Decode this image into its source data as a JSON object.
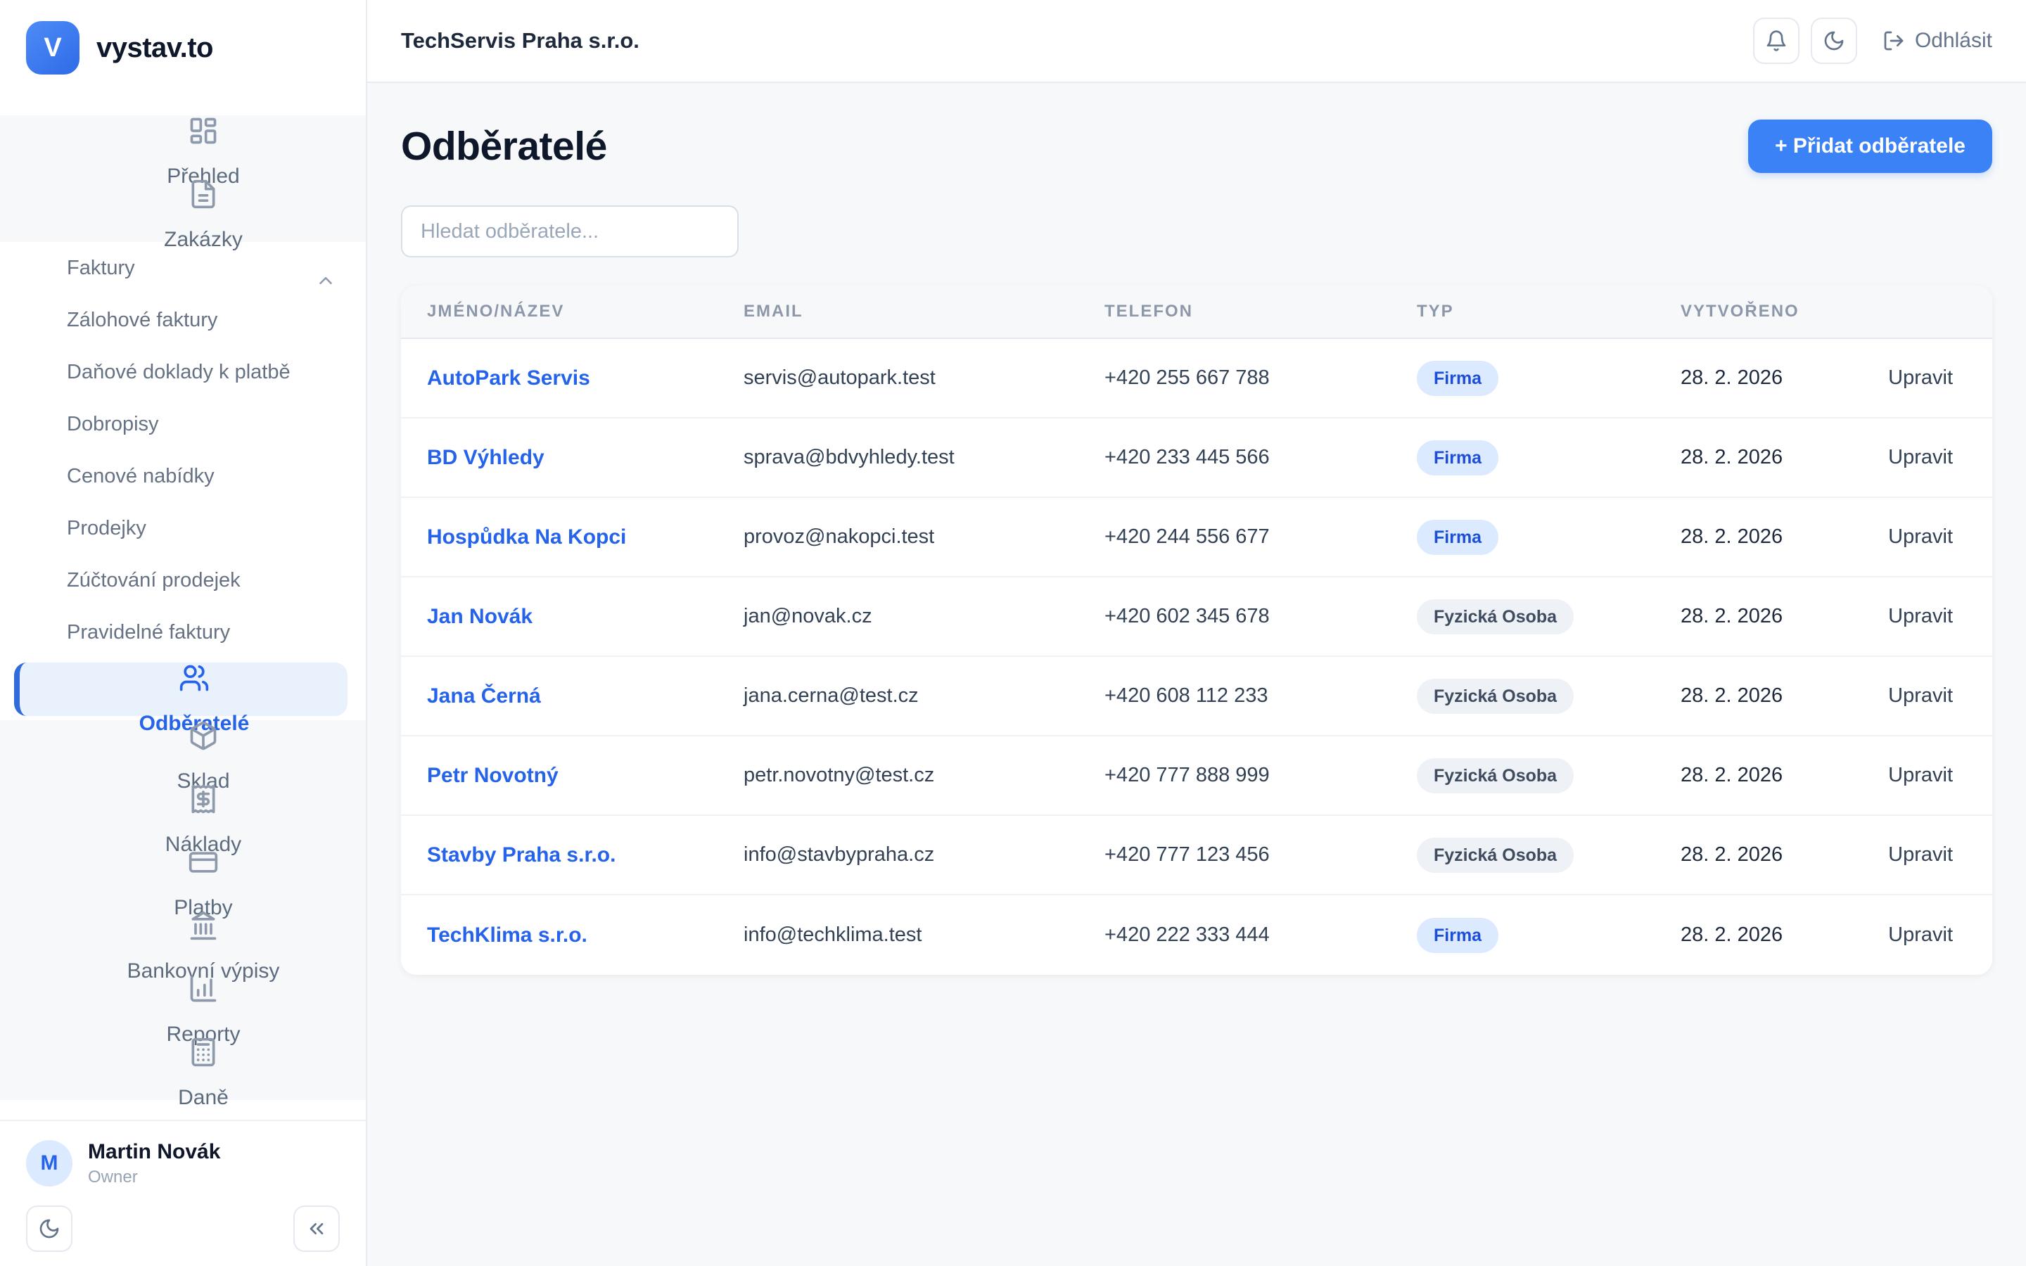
{
  "sidebar": {
    "logo_letter": "V",
    "brand": "vystav.to",
    "items": [
      {
        "label": "Přehled",
        "icon": "dashboard",
        "type": "main"
      },
      {
        "label": "Zakázky",
        "icon": "file-text",
        "type": "main",
        "chevron": "up"
      },
      {
        "label": "Faktury",
        "type": "sub"
      },
      {
        "label": "Zálohové faktury",
        "type": "sub"
      },
      {
        "label": "Daňové doklady k platbě",
        "type": "sub"
      },
      {
        "label": "Dobropisy",
        "type": "sub"
      },
      {
        "label": "Cenové nabídky",
        "type": "sub"
      },
      {
        "label": "Prodejky",
        "type": "sub"
      },
      {
        "label": "Zúčtování prodejek",
        "type": "sub"
      },
      {
        "label": "Pravidelné faktury",
        "type": "sub"
      },
      {
        "label": "Odběratelé",
        "icon": "users",
        "type": "main",
        "active": true
      },
      {
        "label": "Sklad",
        "icon": "package",
        "type": "main"
      },
      {
        "label": "Náklady",
        "icon": "receipt",
        "type": "main"
      },
      {
        "label": "Platby",
        "icon": "credit-card",
        "type": "main"
      },
      {
        "label": "Bankovní výpisy",
        "icon": "landmark",
        "type": "main"
      },
      {
        "label": "Reporty",
        "icon": "bar-chart",
        "type": "main"
      },
      {
        "label": "Daně",
        "icon": "calculator",
        "type": "main"
      }
    ],
    "user": {
      "initial": "M",
      "name": "Martin Novák",
      "role": "Owner"
    }
  },
  "header": {
    "company": "TechServis Praha s.r.o.",
    "logout_label": "Odhlásit"
  },
  "page": {
    "title": "Odběratelé",
    "add_button_label": "+ Přidat odběratele",
    "search_placeholder": "Hledat odběratele..."
  },
  "table": {
    "columns": [
      "JMÉNO/NÁZEV",
      "EMAIL",
      "TELEFON",
      "TYP",
      "VYTVOŘENO"
    ],
    "action_label": "Upravit",
    "rows": [
      {
        "name": "AutoPark Servis",
        "email": "servis@autopark.test",
        "phone": "+420 255 667 788",
        "type": "Firma",
        "type_variant": "blue",
        "created": "28. 2. 2026"
      },
      {
        "name": "BD Výhledy",
        "email": "sprava@bdvyhledy.test",
        "phone": "+420 233 445 566",
        "type": "Firma",
        "type_variant": "blue",
        "created": "28. 2. 2026"
      },
      {
        "name": "Hospůdka Na Kopci",
        "email": "provoz@nakopci.test",
        "phone": "+420 244 556 677",
        "type": "Firma",
        "type_variant": "blue",
        "created": "28. 2. 2026"
      },
      {
        "name": "Jan Novák",
        "email": "jan@novak.cz",
        "phone": "+420 602 345 678",
        "type": "Fyzická Osoba",
        "type_variant": "gray",
        "created": "28. 2. 2026"
      },
      {
        "name": "Jana Černá",
        "email": "jana.cerna@test.cz",
        "phone": "+420 608 112 233",
        "type": "Fyzická Osoba",
        "type_variant": "gray",
        "created": "28. 2. 2026"
      },
      {
        "name": "Petr Novotný",
        "email": "petr.novotny@test.cz",
        "phone": "+420 777 888 999",
        "type": "Fyzická Osoba",
        "type_variant": "gray",
        "created": "28. 2. 2026"
      },
      {
        "name": "Stavby Praha s.r.o.",
        "email": "info@stavbypraha.cz",
        "phone": "+420 777 123 456",
        "type": "Fyzická Osoba",
        "type_variant": "gray",
        "created": "28. 2. 2026"
      },
      {
        "name": "TechKlima s.r.o.",
        "email": "info@techklima.test",
        "phone": "+420 222 333 444",
        "type": "Firma",
        "type_variant": "blue",
        "created": "28. 2. 2026"
      }
    ]
  },
  "colors": {
    "primary": "#3b82f6",
    "link_blue": "#2563eb",
    "active_item_bg": "#e9f1fd",
    "badge_firma_bg": "#dbeafe",
    "badge_firma_text": "#1d4ed8",
    "badge_osoba_bg": "#eef2f7",
    "badge_osoba_text": "#3f4c5f"
  }
}
